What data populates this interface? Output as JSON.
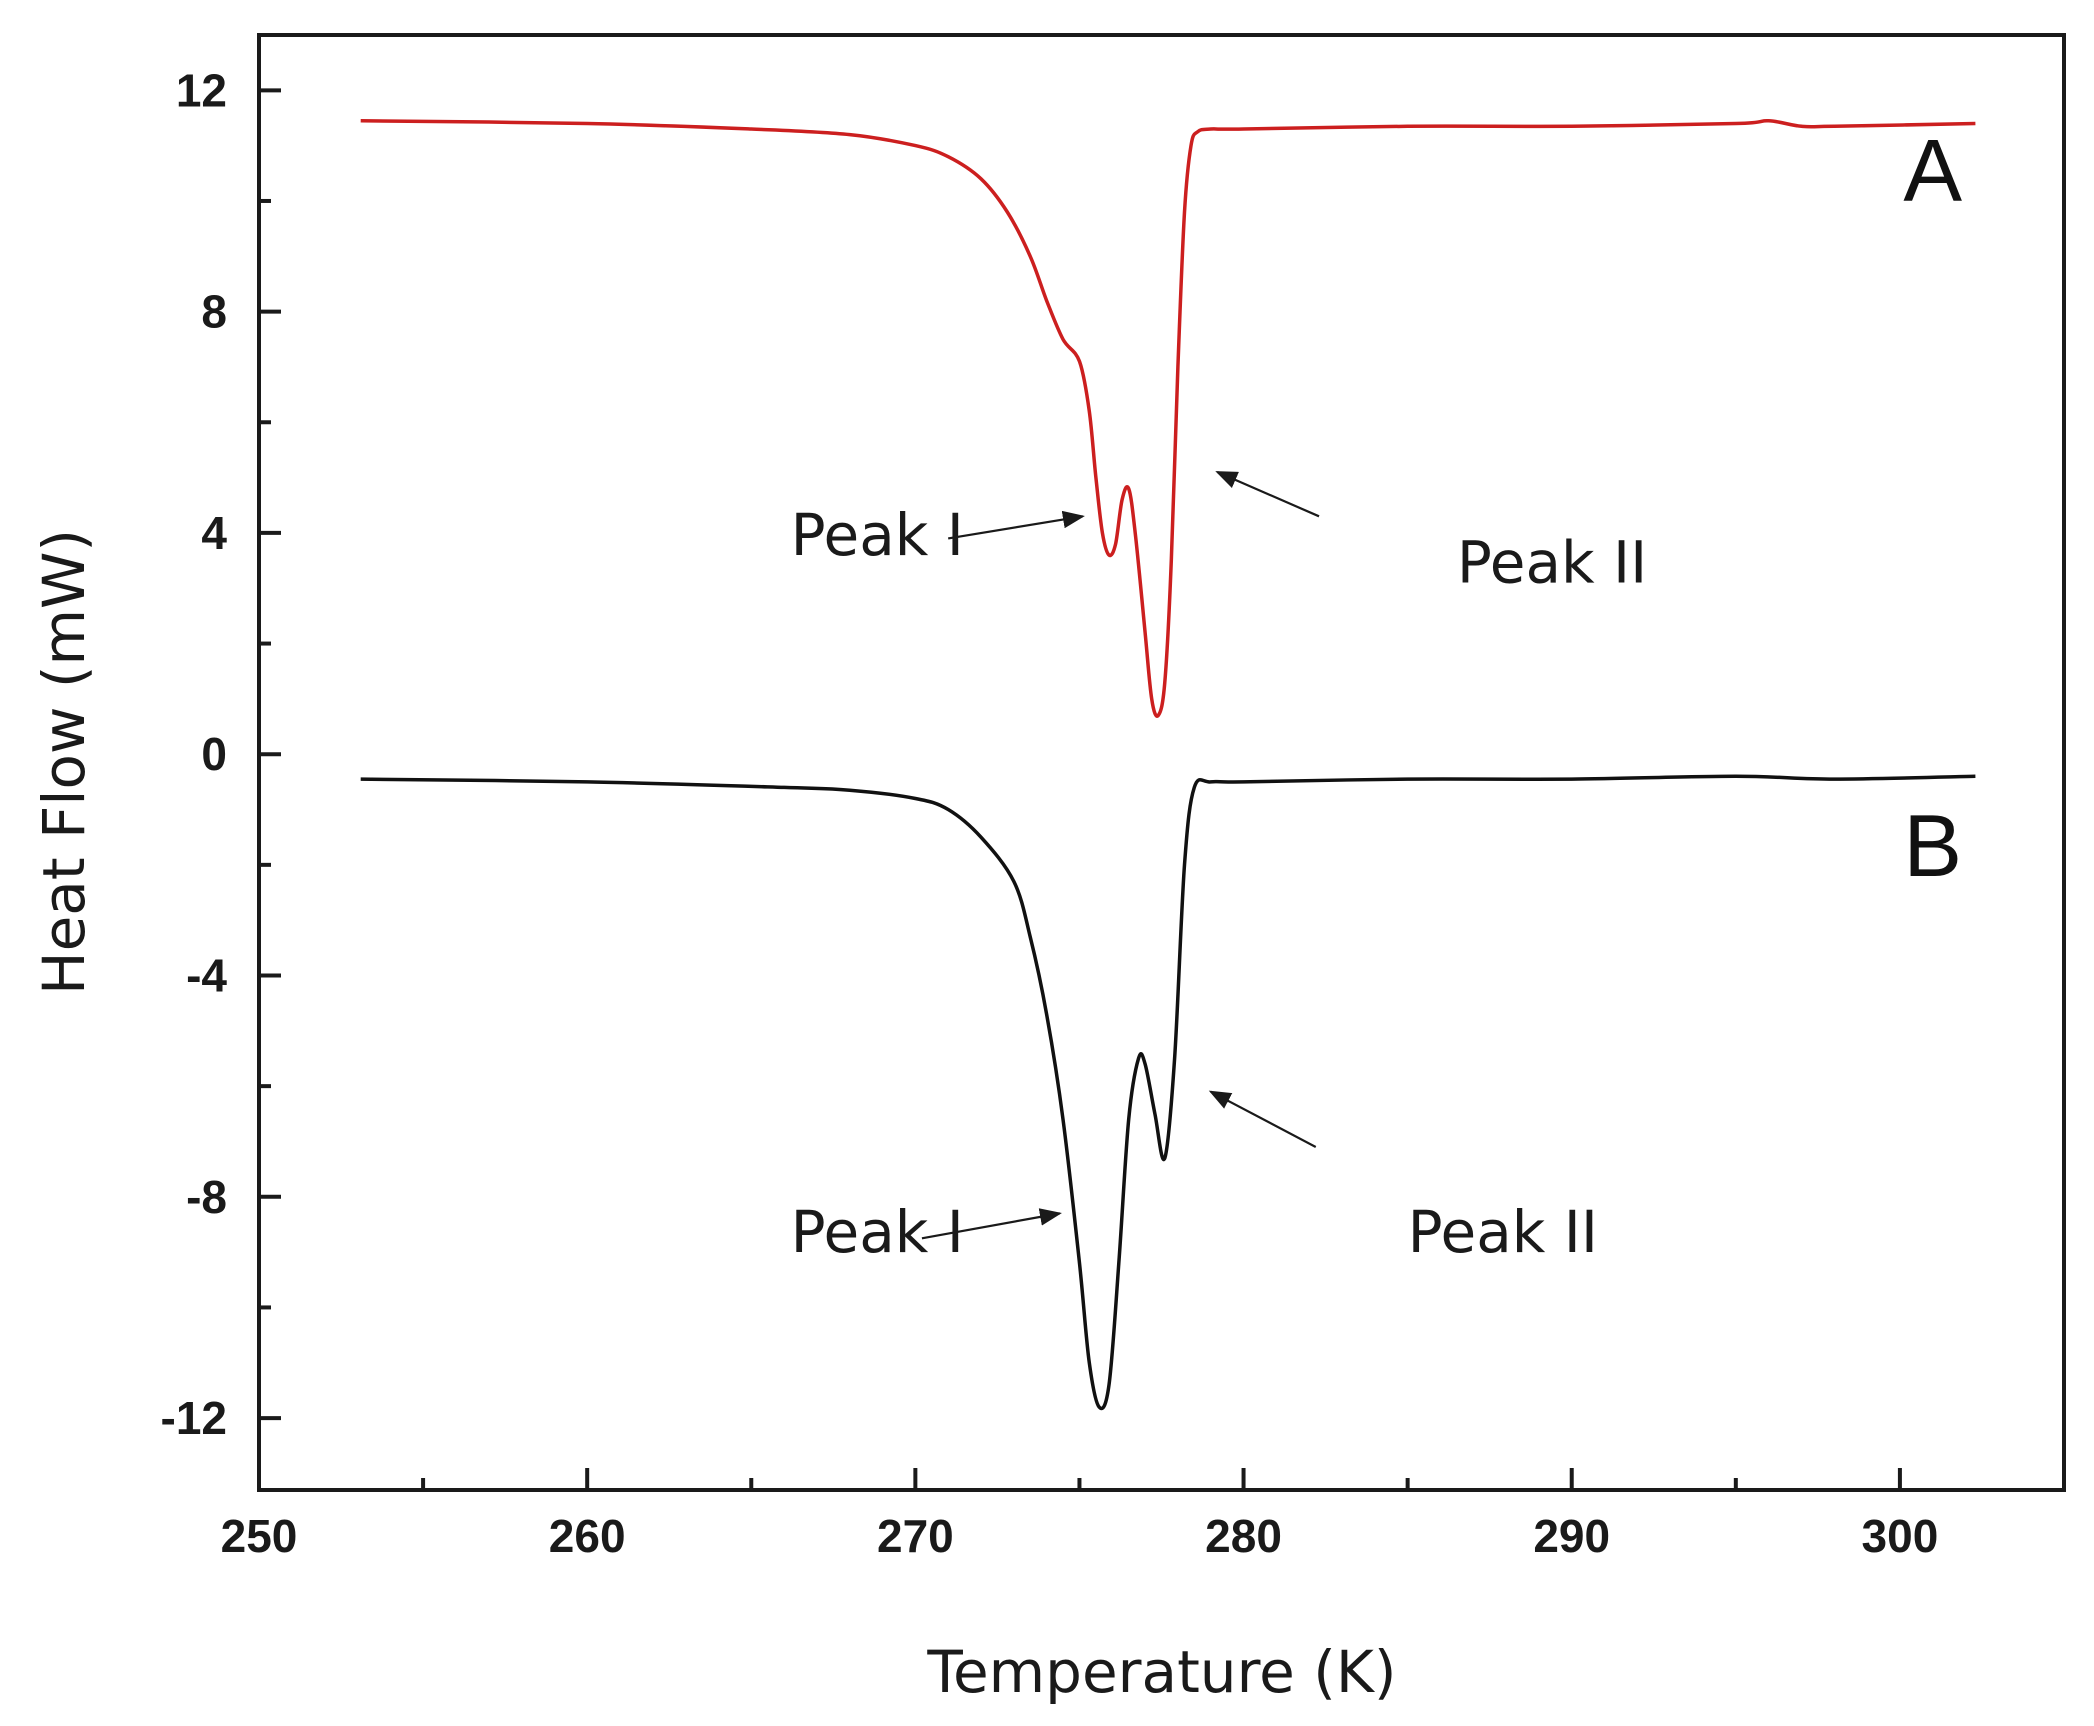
{
  "chart_data": {
    "type": "line",
    "title": "",
    "xlabel": "Temperature (K)",
    "ylabel": "Heat Flow (mW)",
    "xlim": [
      250,
      305
    ],
    "ylim": [
      -13.3,
      13
    ],
    "xticks": [
      250,
      260,
      270,
      280,
      290,
      300
    ],
    "xtick_labels": [
      "250",
      "260",
      "270",
      "280",
      "290",
      "300"
    ],
    "yticks": [
      12,
      8,
      4,
      0,
      -4,
      -8,
      -12
    ],
    "ytick_labels": [
      "12",
      "8",
      "4",
      "0",
      "-4",
      "-8",
      "-12"
    ],
    "grid": false,
    "series": [
      {
        "name": "A",
        "color": "#cc1f1f",
        "x": [
          253.1,
          260,
          265,
          268,
          270,
          271,
          272,
          272.8,
          273.5,
          274,
          274.5,
          275,
          275.3,
          275.5,
          275.7,
          275.9,
          276.1,
          276.3,
          276.5,
          276.7,
          277.0,
          277.2,
          277.4,
          277.6,
          277.8,
          278.0,
          278.2,
          278.4,
          278.6,
          279.0,
          280,
          285,
          290,
          295,
          296,
          297,
          298,
          302.3
        ],
        "y": [
          11.45,
          11.4,
          11.3,
          11.2,
          11.0,
          10.8,
          10.4,
          9.8,
          9.0,
          8.2,
          7.5,
          7.1,
          6.2,
          5.0,
          4.0,
          3.6,
          3.8,
          4.6,
          4.8,
          4.0,
          2.2,
          1.0,
          0.7,
          1.3,
          3.5,
          7.0,
          9.8,
          11.0,
          11.25,
          11.3,
          11.3,
          11.35,
          11.35,
          11.4,
          11.45,
          11.35,
          11.35,
          11.4
        ]
      },
      {
        "name": "B",
        "color": "#111111",
        "x": [
          253.1,
          260,
          266,
          268,
          270,
          271,
          272,
          273,
          273.5,
          274,
          274.5,
          275,
          275.3,
          275.6,
          275.9,
          276.2,
          276.5,
          276.8,
          277.0,
          277.3,
          277.6,
          277.9,
          278.2,
          278.5,
          279.0,
          280,
          285,
          290,
          295,
          298,
          302.3
        ],
        "y": [
          -0.45,
          -0.5,
          -0.6,
          -0.65,
          -0.8,
          -1.0,
          -1.5,
          -2.3,
          -3.3,
          -4.7,
          -6.6,
          -9.2,
          -11.0,
          -11.8,
          -11.4,
          -9.2,
          -6.6,
          -5.5,
          -5.6,
          -6.5,
          -7.3,
          -5.5,
          -2.0,
          -0.6,
          -0.5,
          -0.5,
          -0.45,
          -0.45,
          -0.4,
          -0.45,
          -0.4
        ]
      }
    ],
    "annotations": [
      {
        "text": "A",
        "x": 301,
        "y": 10
      },
      {
        "text": "B",
        "x": 301,
        "y": -2.2
      },
      {
        "text": "Peak I",
        "x": 266.2,
        "y": 3.6,
        "arrow_from": [
          271.0,
          3.9
        ],
        "arrow_to": [
          275.1,
          4.3
        ]
      },
      {
        "text": "Peak II",
        "x": 286.5,
        "y": 3.1,
        "arrow_from": [
          282.3,
          4.3
        ],
        "arrow_to": [
          279.2,
          5.1
        ]
      },
      {
        "text": "Peak I",
        "x": 266.2,
        "y": -9.0,
        "arrow_from": [
          270.2,
          -8.75
        ],
        "arrow_to": [
          274.4,
          -8.3
        ]
      },
      {
        "text": "Peak II",
        "x": 285.0,
        "y": -9.0,
        "arrow_from": [
          282.2,
          -7.1
        ],
        "arrow_to": [
          279.0,
          -6.1
        ]
      }
    ]
  }
}
